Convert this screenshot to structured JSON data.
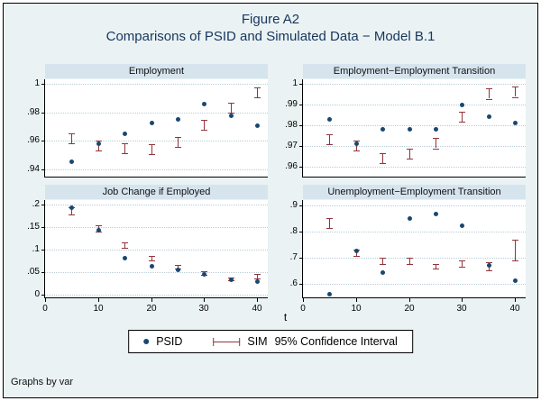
{
  "figure": {
    "title_line1": "Figure A2",
    "title_line2": "Comparisons of PSID and Simulated Data − Model B.1",
    "xlabel": "t",
    "note": "Graphs by var"
  },
  "legend": {
    "psid_label": "PSID",
    "sim_label": "SIM",
    "ci_label": "95% Confidence Interval"
  },
  "colors": {
    "background": "#eaf2f3",
    "panel_title_bg": "#d6e4ee",
    "psid": "#1a476f",
    "sim": "#90353b",
    "grid": "#b8cdd8",
    "title_text": "#17365d"
  },
  "chart_data": [
    {
      "type": "scatter",
      "title": "Employment",
      "x": [
        5,
        10,
        15,
        20,
        25,
        30,
        35,
        40
      ],
      "xlim": [
        0,
        42
      ],
      "xticks": [
        0,
        10,
        20,
        30,
        40
      ],
      "xtick_labels": [
        "0",
        "10",
        "20",
        "30",
        "40"
      ],
      "ylim": [
        0.935,
        1.003
      ],
      "yticks": [
        0.94,
        0.96,
        0.98,
        1
      ],
      "ytick_labels": [
        ".94",
        ".96",
        ".98",
        "1"
      ],
      "grid": true,
      "series": [
        {
          "name": "PSID",
          "type": "points",
          "values": [
            0.946,
            0.958,
            0.965,
            0.973,
            0.975,
            0.986,
            0.978,
            0.971
          ]
        },
        {
          "name": "SIM",
          "type": "errorbars",
          "values": [
            0.962,
            0.957,
            0.955,
            0.954,
            0.959,
            0.971,
            0.983,
            0.994
          ],
          "half_width": [
            0.0035,
            0.0035,
            0.0035,
            0.0035,
            0.0035,
            0.0035,
            0.0035,
            0.0035
          ]
        }
      ]
    },
    {
      "type": "scatter",
      "title": "Employment−Employment Transition",
      "x": [
        5,
        10,
        15,
        20,
        25,
        30,
        35,
        40
      ],
      "xlim": [
        0,
        42
      ],
      "xticks": [
        0,
        10,
        20,
        30,
        40
      ],
      "xtick_labels": [
        "0",
        "10",
        "20",
        "30",
        "40"
      ],
      "ylim": [
        0.955,
        1.002
      ],
      "yticks": [
        0.96,
        0.97,
        0.98,
        0.99,
        1
      ],
      "ytick_labels": [
        ".96",
        ".97",
        ".98",
        ".99",
        "1"
      ],
      "grid": true,
      "series": [
        {
          "name": "PSID",
          "type": "points",
          "values": [
            0.983,
            0.971,
            0.978,
            0.978,
            0.978,
            0.99,
            0.984,
            0.981
          ]
        },
        {
          "name": "SIM",
          "type": "errorbars",
          "values": [
            0.973,
            0.97,
            0.964,
            0.966,
            0.971,
            0.984,
            0.995,
            0.996
          ],
          "half_width": [
            0.0025,
            0.0025,
            0.0025,
            0.0025,
            0.0025,
            0.0025,
            0.0025,
            0.0025
          ]
        }
      ]
    },
    {
      "type": "scatter",
      "title": "Job Change if Employed",
      "x": [
        5,
        10,
        15,
        20,
        25,
        30,
        35,
        40
      ],
      "xlim": [
        0,
        42
      ],
      "xticks": [
        0,
        10,
        20,
        30,
        40
      ],
      "xtick_labels": [
        "0",
        "10",
        "20",
        "30",
        "40"
      ],
      "ylim": [
        -0.005,
        0.21
      ],
      "yticks": [
        0,
        0.05,
        0.1,
        0.15,
        0.2
      ],
      "ytick_labels": [
        "0",
        ".05",
        ".1",
        ".15",
        ".2"
      ],
      "grid": true,
      "series": [
        {
          "name": "PSID",
          "type": "points",
          "values": [
            0.195,
            0.145,
            0.083,
            0.065,
            0.057,
            0.047,
            0.035,
            0.03
          ]
        },
        {
          "name": "SIM",
          "type": "errorbars",
          "values": [
            0.186,
            0.147,
            0.11,
            0.082,
            0.062,
            0.048,
            0.036,
            0.042
          ],
          "half_width": [
            0.008,
            0.007,
            0.006,
            0.005,
            0.004,
            0.004,
            0.003,
            0.005
          ]
        }
      ]
    },
    {
      "type": "scatter",
      "title": "Unemployment−Employment Transition",
      "x": [
        5,
        10,
        15,
        20,
        25,
        30,
        35,
        40
      ],
      "xlim": [
        0,
        42
      ],
      "xticks": [
        0,
        10,
        20,
        30,
        40
      ],
      "xtick_labels": [
        "0",
        "10",
        "20",
        "30",
        "40"
      ],
      "ylim": [
        0.55,
        0.92
      ],
      "yticks": [
        0.6,
        0.7,
        0.8,
        0.9
      ],
      "ytick_labels": [
        ".6",
        ".7",
        ".8",
        ".9"
      ],
      "grid": true,
      "series": [
        {
          "name": "PSID",
          "type": "points",
          "values": [
            0.565,
            0.728,
            0.645,
            0.853,
            0.868,
            0.825,
            0.672,
            0.615
          ]
        },
        {
          "name": "SIM",
          "type": "errorbars",
          "values": [
            0.832,
            0.718,
            0.688,
            0.69,
            0.668,
            0.68,
            0.668,
            0.73
          ],
          "half_width": [
            0.018,
            0.012,
            0.012,
            0.012,
            0.01,
            0.012,
            0.015,
            0.04
          ]
        }
      ]
    }
  ]
}
